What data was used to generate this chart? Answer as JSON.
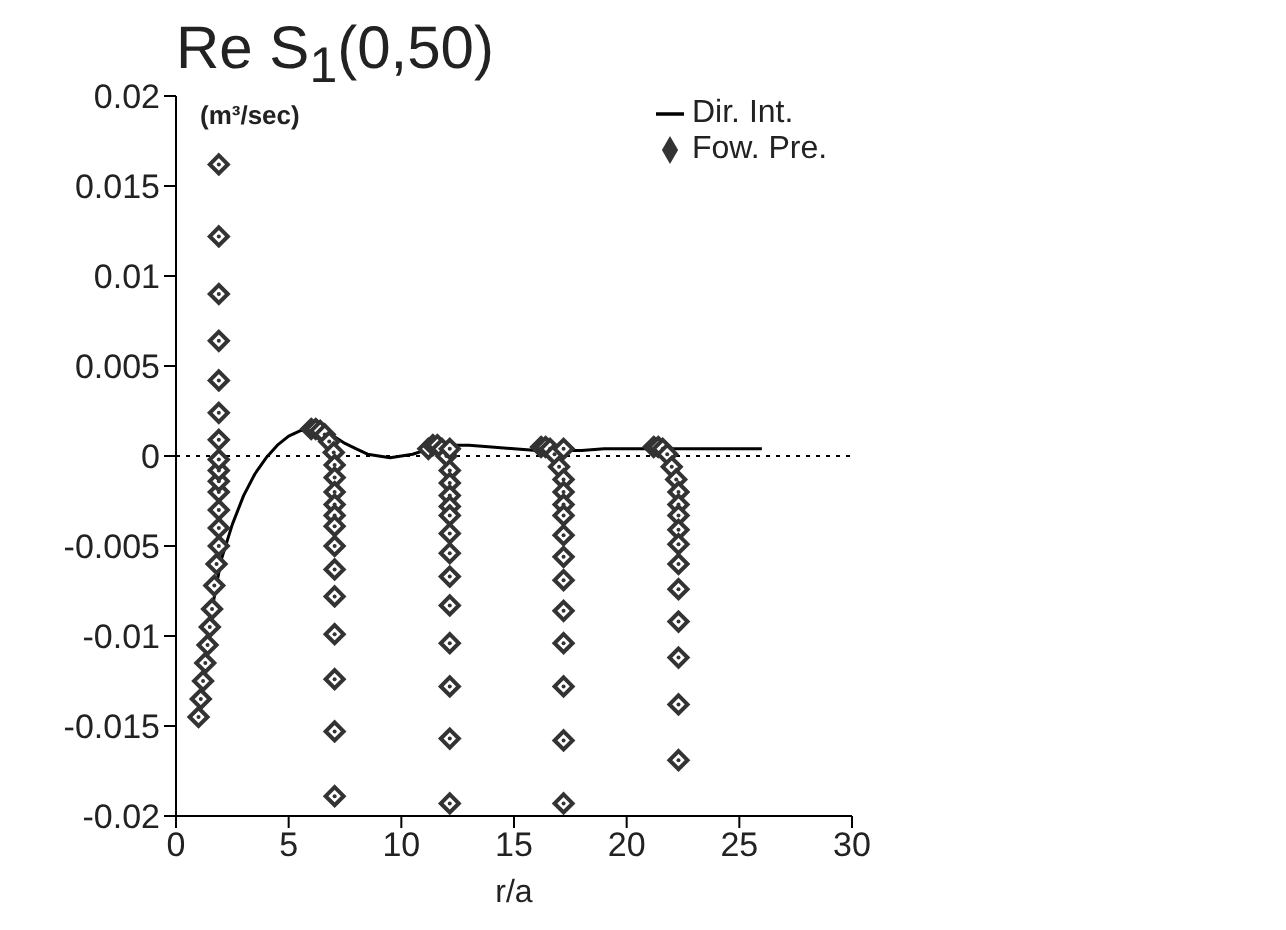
{
  "chart_data": {
    "type": "line",
    "title": "Re S$_{1}$(0,50)",
    "xlabel": "r/a",
    "ylabel": "(m³/sec)",
    "xlim": [
      0,
      30
    ],
    "xticks": [
      0,
      5,
      10,
      15,
      20,
      25,
      30
    ],
    "ylim": [
      -0.02,
      0.02
    ],
    "yticks": [
      -0.02,
      -0.015,
      -0.01,
      -0.005,
      0,
      0.005,
      0.01,
      0.015,
      0.02
    ],
    "grid": false,
    "legend": "top right",
    "ref_lines": [
      {
        "axis": "y",
        "value": 0,
        "line_style": "dotted",
        "color": "#000000"
      }
    ],
    "series": [
      {
        "name": "Dir. Int.",
        "color": "#000000",
        "marker": "none",
        "line_style": "solid",
        "x": [
          1.0,
          1.3,
          1.6,
          2,
          2.5,
          3,
          3.5,
          4,
          4.5,
          5,
          5.5,
          6,
          6.5,
          7,
          7.5,
          8,
          8.5,
          9,
          9.5,
          10,
          10.5,
          11,
          11.5,
          12,
          13,
          14,
          15,
          16,
          17,
          18,
          19,
          20,
          21,
          22,
          23,
          24,
          25,
          26
        ],
        "values": [
          -0.0145,
          -0.0115,
          -0.0085,
          -0.0058,
          -0.0038,
          -0.0022,
          -0.001,
          -0.0001,
          0.0006,
          0.0011,
          0.0014,
          0.0015,
          0.0014,
          0.0011,
          0.0007,
          0.0004,
          0.0001,
          0.0,
          -0.0001,
          0.0,
          0.0001,
          0.0003,
          0.0005,
          0.0006,
          0.0006,
          0.0005,
          0.0004,
          0.0003,
          0.0003,
          0.0003,
          0.0004,
          0.0004,
          0.0004,
          0.0004,
          0.0004,
          0.0004,
          0.0004,
          0.0004
        ]
      },
      {
        "name": "Fow. Pre.",
        "type": "scatter",
        "color": "#333333",
        "marker": "diamond",
        "x": [
          1.0,
          1.1,
          1.2,
          1.3,
          1.4,
          1.5,
          1.6,
          1.7,
          1.8,
          1.9,
          1.9,
          1.9,
          1.9,
          1.9,
          1.9,
          1.9,
          1.9,
          1.9,
          1.9,
          1.9,
          1.9,
          1.9,
          1.9,
          6.0,
          6.2,
          6.4,
          6.6,
          6.8,
          7.0,
          7.04,
          7.04,
          7.04,
          7.04,
          7.04,
          7.04,
          7.04,
          7.04,
          7.04,
          7.04,
          7.04,
          7.04,
          7.04,
          11.2,
          11.4,
          11.6,
          11.8,
          12.0,
          12.15,
          12.15,
          12.15,
          12.15,
          12.15,
          12.15,
          12.15,
          12.15,
          12.15,
          12.15,
          12.15,
          12.15,
          12.15,
          12.15,
          16.2,
          16.4,
          16.6,
          16.8,
          17.0,
          17.2,
          17.2,
          17.2,
          17.2,
          17.2,
          17.2,
          17.2,
          17.2,
          17.2,
          17.2,
          17.2,
          17.2,
          17.2,
          21.2,
          21.4,
          21.6,
          21.8,
          22.0,
          22.2,
          22.3,
          22.3,
          22.3,
          22.3,
          22.3,
          22.3,
          22.3,
          22.3,
          22.3,
          22.3,
          22.3
        ],
        "values": [
          -0.0145,
          -0.0135,
          -0.0125,
          -0.0115,
          -0.0105,
          -0.0095,
          -0.0085,
          -0.0072,
          -0.006,
          -0.005,
          -0.004,
          -0.003,
          -0.002,
          -0.0014,
          -0.0008,
          -0.0002,
          0.0009,
          0.0024,
          0.0042,
          0.0064,
          0.009,
          0.0122,
          0.0162,
          0.0015,
          0.0015,
          0.0014,
          0.0012,
          0.0008,
          0.0002,
          -0.0005,
          -0.0012,
          -0.002,
          -0.0027,
          -0.0033,
          -0.0039,
          -0.005,
          -0.0063,
          -0.0078,
          -0.0099,
          -0.0124,
          -0.0153,
          -0.0189,
          0.0004,
          0.0006,
          0.0006,
          0.0004,
          0.0,
          -0.0008,
          -0.0015,
          -0.0022,
          -0.0028,
          -0.0033,
          -0.0043,
          -0.0054,
          -0.0067,
          -0.0083,
          -0.0104,
          -0.0128,
          -0.0157,
          -0.0193,
          0.0004,
          0.0005,
          0.0005,
          0.0004,
          0.0001,
          -0.0006,
          -0.0013,
          -0.002,
          -0.0027,
          -0.0033,
          -0.0044,
          -0.0056,
          -0.0069,
          -0.0086,
          -0.0104,
          -0.0128,
          -0.0158,
          -0.0193,
          0.0004,
          0.0005,
          0.0005,
          0.0004,
          0.0001,
          -0.0006,
          -0.0013,
          -0.002,
          -0.0027,
          -0.0033,
          -0.0041,
          -0.0049,
          -0.006,
          -0.0074,
          -0.0092,
          -0.0112,
          -0.0138,
          -0.0169
        ]
      }
    ]
  }
}
